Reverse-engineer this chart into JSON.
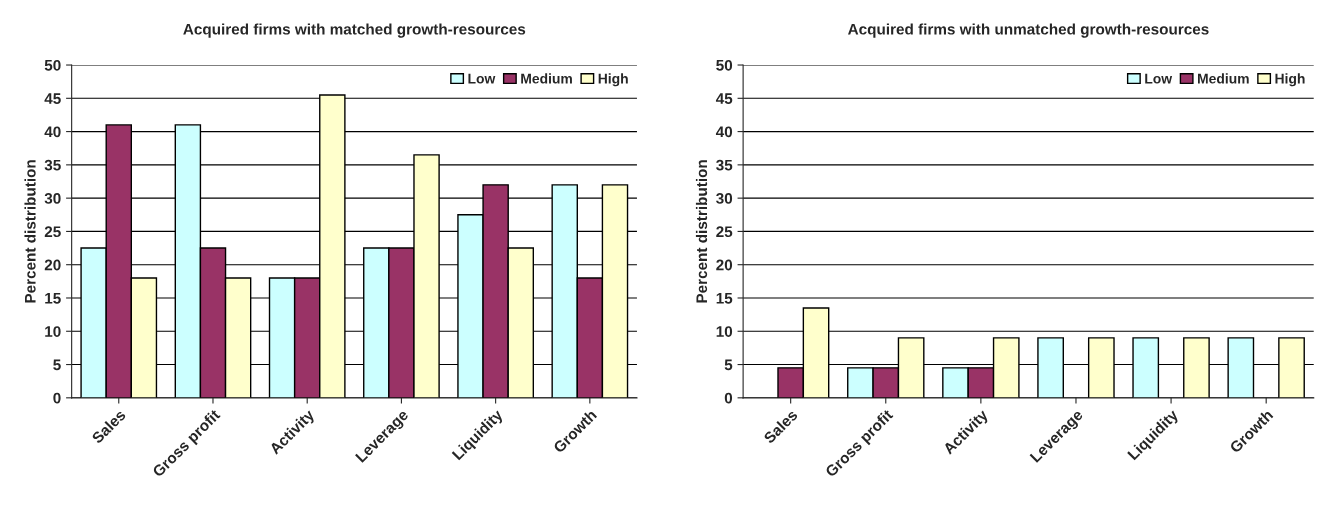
{
  "chart_data": [
    {
      "type": "bar",
      "title": "Acquired firms with matched growth-resources",
      "ylabel": "Percent distribution",
      "categories": [
        "Sales",
        "Gross profit",
        "Activity",
        "Leverage",
        "Liquidity",
        "Growth"
      ],
      "series": [
        {
          "name": "Low",
          "color": "#ccffff",
          "values": [
            22.5,
            41,
            18,
            22.5,
            27.5,
            32
          ]
        },
        {
          "name": "Medium",
          "color": "#993366",
          "values": [
            41,
            22.5,
            18,
            22.5,
            32,
            18
          ]
        },
        {
          "name": "High",
          "color": "#ffffcc",
          "values": [
            18,
            18,
            45.5,
            36.5,
            22.5,
            32
          ]
        }
      ],
      "ylim": [
        0,
        50
      ],
      "yticks": [
        0,
        5,
        10,
        15,
        20,
        25,
        30,
        35,
        40,
        45,
        50
      ],
      "grid": "y",
      "legend": "top right"
    },
    {
      "type": "bar",
      "title": "Acquired firms with unmatched growth-resources",
      "ylabel": "Percent distribution",
      "categories": [
        "Sales",
        "Gross profit",
        "Activity",
        "Leverage",
        "Liquidity",
        "Growth"
      ],
      "series": [
        {
          "name": "Low",
          "color": "#ccffff",
          "values": [
            null,
            4.5,
            4.5,
            9,
            9,
            9
          ]
        },
        {
          "name": "Medium",
          "color": "#993366",
          "values": [
            4.5,
            4.5,
            4.5,
            null,
            null,
            null
          ]
        },
        {
          "name": "High",
          "color": "#ffffcc",
          "values": [
            13.5,
            9,
            9,
            9,
            9,
            9
          ]
        }
      ],
      "ylim": [
        0,
        50
      ],
      "yticks": [
        0,
        5,
        10,
        15,
        20,
        25,
        30,
        35,
        40,
        45,
        50
      ],
      "grid": "y",
      "legend": "top right"
    }
  ]
}
